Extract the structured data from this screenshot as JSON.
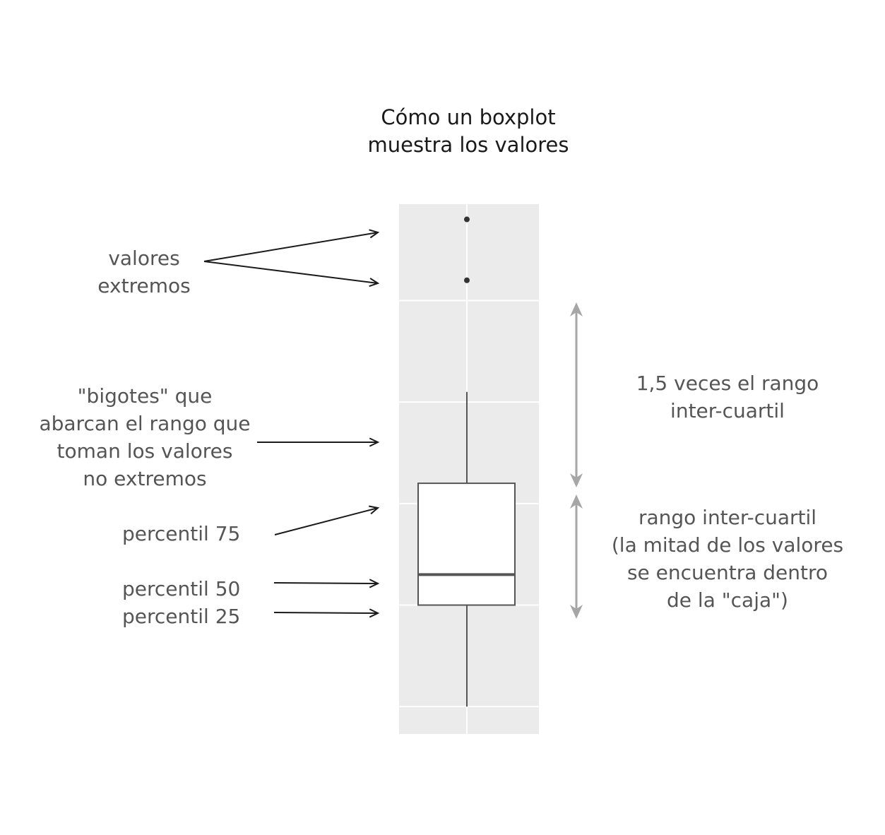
{
  "title": {
    "line1": "Cómo un boxplot",
    "line2": "muestra los valores"
  },
  "annotations": {
    "outliers": [
      "valores",
      "extremos"
    ],
    "whiskers": [
      "\"bigotes\" que",
      "abarcan el rango que",
      "toman los valores",
      "no extremos"
    ],
    "p75": "percentil 75",
    "p50": "percentil 50",
    "p25": "percentil 25",
    "range_15iqr": [
      "1,5 veces el rango",
      "inter-cuartil"
    ],
    "iqr": [
      "rango inter-cuartil",
      "(la mitad de los valores",
      "se encuentra dentro",
      "de la \"caja\")"
    ]
  },
  "colors": {
    "panel": "#ebebeb",
    "gridline": "#ffffff",
    "box_stroke": "#555555",
    "annotation_arrow": "#1a1a1a",
    "range_arrow": "#a6a6a6",
    "text": "#555555",
    "title": "#1a1a1a"
  },
  "chart_data": {
    "type": "boxplot",
    "title": "Cómo un boxplot muestra los valores",
    "whisker_low": 0,
    "q1": 1,
    "median": 1.3,
    "q3": 2.2,
    "whisker_high": 3.1,
    "outliers": [
      4.2,
      4.8
    ],
    "ylim": [
      -0.27,
      4.95
    ],
    "grid": true
  }
}
